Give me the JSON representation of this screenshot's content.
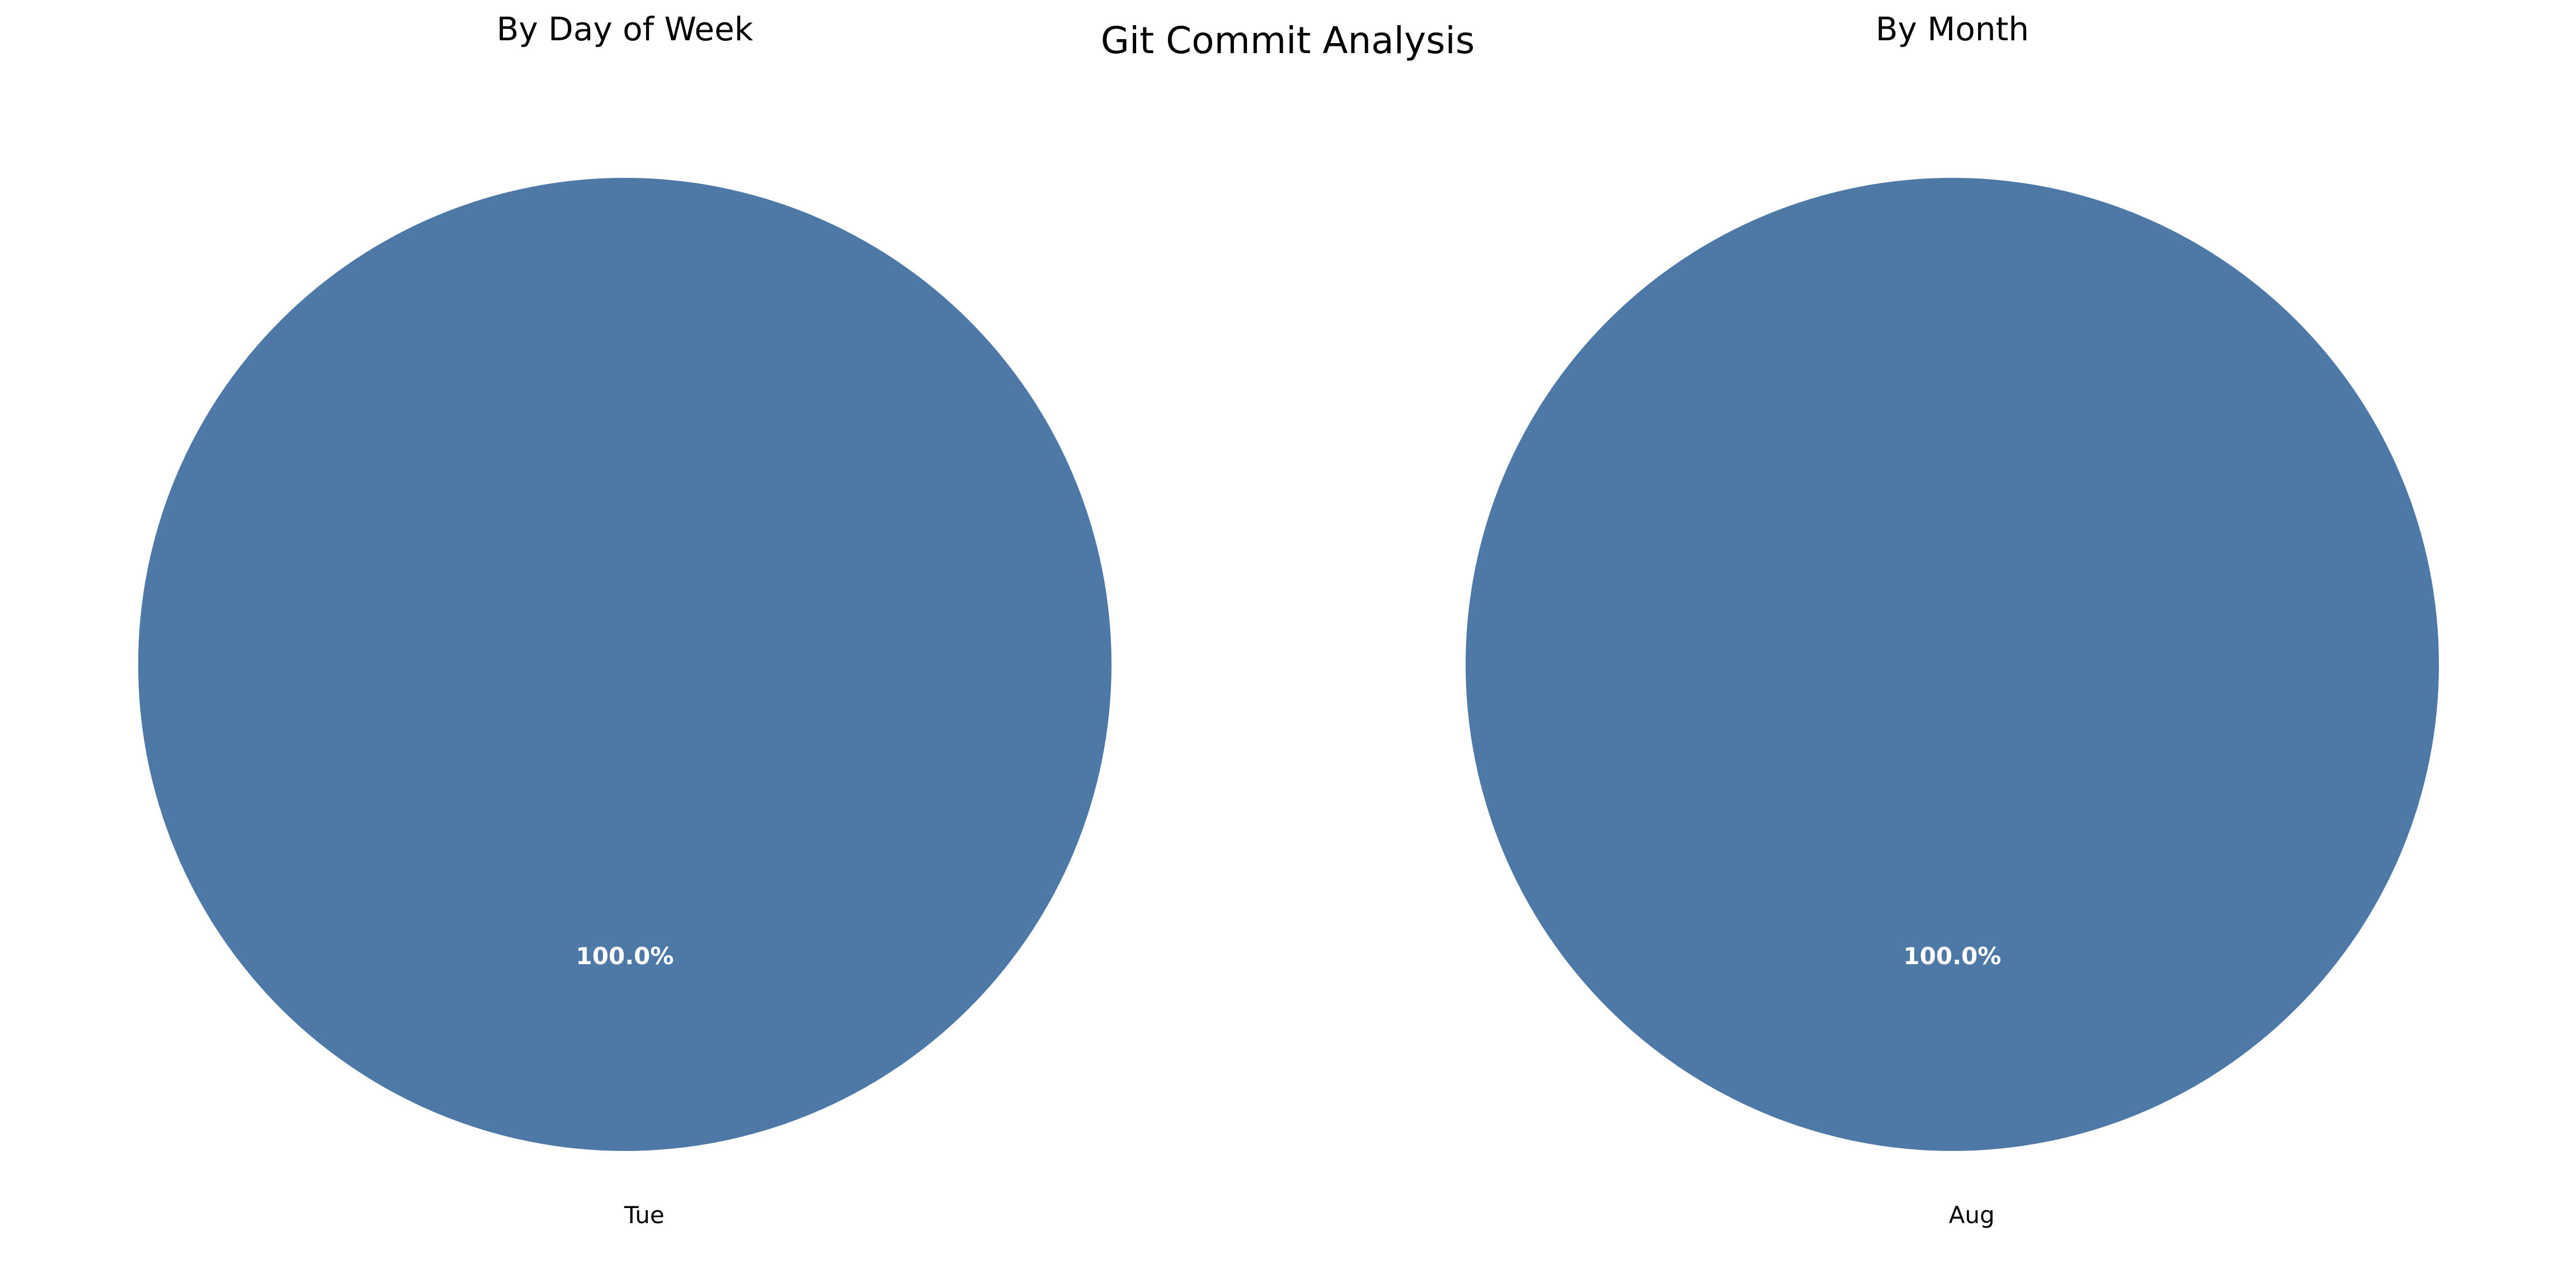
{
  "chart_data": {
    "title": "Git Commit Analysis",
    "charts": [
      {
        "type": "pie",
        "title": "By Day of Week",
        "slices": [
          {
            "label": "Tue",
            "value": 100.0,
            "pct_label": "100.0%",
            "color": "#4e79a7"
          }
        ]
      },
      {
        "type": "pie",
        "title": "By Month",
        "slices": [
          {
            "label": "Aug",
            "value": 100.0,
            "pct_label": "100.0%",
            "color": "#4e79a7"
          }
        ]
      }
    ]
  }
}
